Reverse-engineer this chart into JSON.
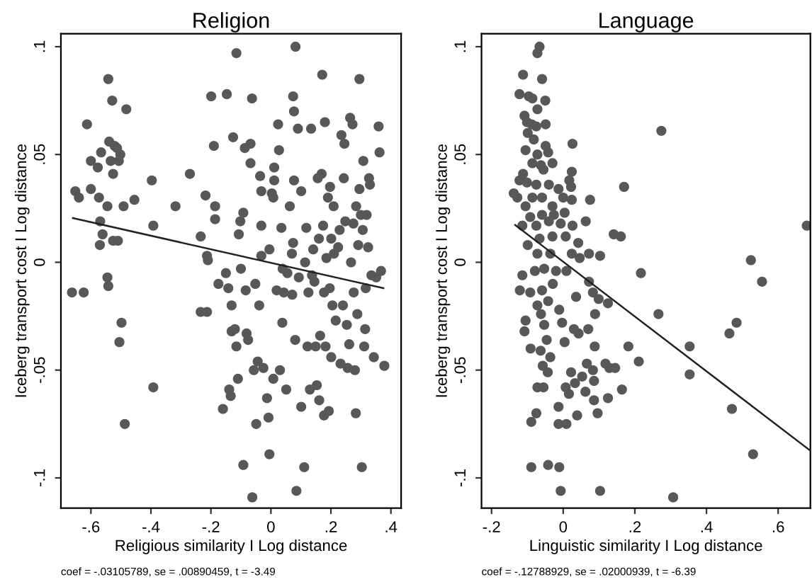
{
  "chart_data": [
    {
      "type": "scatter",
      "title": "Religion",
      "xlabel": "Religious similarity I Log distance",
      "ylabel": "Iceberg transport cost I Log distance",
      "annotations": [
        "coef = -.03105789, se = .00890459, t = -3.49"
      ],
      "xlim": [
        -0.7,
        0.434
      ],
      "ylim": [
        -0.114,
        0.106
      ],
      "xticks": [
        {
          "value": -0.6,
          "label": "-.6"
        },
        {
          "value": -0.4,
          "label": "-.4"
        },
        {
          "value": -0.2,
          "label": "-.2"
        },
        0,
        {
          "value": 0.2,
          "label": ".2"
        },
        {
          "value": 0.4,
          "label": ".4"
        }
      ],
      "yticks": [
        {
          "value": -0.1,
          "label": "-.1"
        },
        {
          "value": -0.05,
          "label": "-.05"
        },
        0,
        {
          "value": 0.05,
          "label": ".05"
        },
        {
          "value": 0.1,
          "label": ".1"
        }
      ],
      "grid": false,
      "marker": "circle",
      "series": [
        {
          "color": "#585858",
          "x": [
            -0.663,
            -0.624,
            -0.613,
            -0.652,
            -0.64,
            -0.6,
            -0.6,
            -0.577,
            -0.573,
            -0.569,
            -0.566,
            -0.57,
            -0.561,
            -0.542,
            -0.539,
            -0.534,
            -0.529,
            -0.526,
            -0.521,
            -0.545,
            -0.526,
            -0.51,
            -0.545,
            -0.542,
            -0.513,
            -0.507,
            -0.502,
            -0.498,
            -0.505,
            -0.487,
            -0.482,
            -0.491,
            -0.455,
            -0.397,
            -0.392,
            -0.392,
            -0.318,
            -0.27,
            -0.234,
            -0.234,
            -0.213,
            -0.218,
            -0.213,
            -0.21,
            -0.199,
            -0.19,
            -0.186,
            -0.186,
            -0.175,
            -0.16,
            -0.15,
            -0.147,
            -0.142,
            -0.139,
            -0.134,
            -0.131,
            -0.131,
            -0.126,
            -0.12,
            -0.115,
            -0.115,
            -0.11,
            -0.107,
            -0.102,
            -0.1,
            -0.092,
            -0.092,
            -0.087,
            -0.084,
            -0.081,
            -0.076,
            -0.068,
            -0.068,
            -0.063,
            -0.062,
            -0.057,
            -0.052,
            -0.049,
            -0.044,
            -0.039,
            -0.036,
            -0.032,
            -0.032,
            -0.032,
            -0.025,
            -0.013,
            -0.008,
            -0.005,
            -0.005,
            0.003,
            0.008,
            0.011,
            0.011,
            0.008,
            0.019,
            0.024,
            0.027,
            0.03,
            0.035,
            0.038,
            0.039,
            0.043,
            0.051,
            0.055,
            0.063,
            0.07,
            0.071,
            0.074,
            0.074,
            0.077,
            0.077,
            0.081,
            0.082,
            0.085,
            0.09,
            0.093,
            0.101,
            0.101,
            0.111,
            0.114,
            0.118,
            0.122,
            0.125,
            0.13,
            0.134,
            0.137,
            0.141,
            0.145,
            0.149,
            0.153,
            0.156,
            0.16,
            0.161,
            0.164,
            0.169,
            0.171,
            0.174,
            0.177,
            0.177,
            0.18,
            0.182,
            0.185,
            0.19,
            0.193,
            0.196,
            0.197,
            0.201,
            0.201,
            0.205,
            0.209,
            0.21,
            0.216,
            0.224,
            0.229,
            0.232,
            0.235,
            0.24,
            0.243,
            0.245,
            0.248,
            0.253,
            0.256,
            0.261,
            0.264,
            0.267,
            0.272,
            0.275,
            0.276,
            0.28,
            0.283,
            0.284,
            0.288,
            0.291,
            0.295,
            0.295,
            0.3,
            0.303,
            0.306,
            0.308,
            0.311,
            0.314,
            0.316,
            0.319,
            0.324,
            0.327,
            0.33,
            0.335,
            0.343,
            0.351,
            0.359,
            0.362,
            0.367,
            0.378
          ],
          "values": [
            -0.014,
            -0.014,
            0.064,
            0.033,
            0.03,
            0.047,
            0.034,
            0.044,
            0.03,
            0.019,
            0.051,
            0.008,
            0.013,
            0.085,
            0.056,
            0.047,
            0.075,
            0.041,
            0.054,
            0.026,
            0.01,
            0.01,
            -0.007,
            -0.011,
            0.053,
            0.047,
            0.05,
            -0.028,
            -0.037,
            -0.075,
            0.071,
            0.026,
            0.029,
            0.038,
            0.017,
            -0.058,
            0.026,
            0.041,
            0.012,
            -0.023,
            -0.023,
            0.031,
            0.003,
            0.001,
            0.077,
            0.054,
            0.026,
            0.02,
            -0.01,
            -0.068,
            -0.005,
            0.078,
            -0.012,
            -0.059,
            -0.062,
            -0.02,
            -0.032,
            0.058,
            -0.031,
            -0.039,
            0.097,
            -0.054,
            0.013,
            0.019,
            -0.003,
            0.023,
            -0.094,
            0.053,
            -0.013,
            -0.033,
            -0.036,
            0.055,
            0.046,
            0.076,
            -0.109,
            -0.05,
            -0.01,
            -0.075,
            -0.046,
            -0.02,
            0.04,
            0.017,
            0.033,
            0.003,
            -0.049,
            -0.063,
            -0.072,
            -0.089,
            0.006,
            0.032,
            0.03,
            0.038,
            0.044,
            -0.054,
            -0.013,
            0.064,
            0.052,
            -0.05,
            0.016,
            -0.028,
            -0.003,
            -0.014,
            -0.059,
            -0.005,
            0.026,
            0.004,
            -0.015,
            0.009,
            0.077,
            0.07,
            0.038,
            -0.036,
            0.1,
            -0.106,
            0.062,
            -0.007,
            0.033,
            -0.067,
            -0.095,
            0.0,
            0.016,
            -0.039,
            -0.014,
            -0.059,
            0.062,
            -0.006,
            0.006,
            -0.009,
            -0.039,
            -0.057,
            0.039,
            0.011,
            -0.064,
            -0.034,
            0.041,
            0.087,
            0.017,
            -0.071,
            -0.014,
            0.065,
            -0.039,
            0.002,
            0.03,
            -0.069,
            -0.012,
            0.035,
            0.011,
            -0.044,
            -0.02,
            0.026,
            0.004,
            -0.027,
            0.007,
            0.015,
            -0.047,
            0.059,
            -0.02,
            0.039,
            0.055,
            0.019,
            -0.029,
            -0.049,
            -0.038,
            0.067,
            0.0,
            0.064,
            0.018,
            -0.014,
            -0.05,
            -0.07,
            0.026,
            -0.024,
            0.008,
            0.034,
            0.085,
            0.022,
            -0.095,
            0.015,
            0.047,
            -0.039,
            -0.031,
            -0.012,
            0.022,
            0.007,
            0.039,
            0.036,
            -0.006,
            -0.044,
            -0.007,
            0.063,
            0.051,
            -0.004,
            -0.048
          ]
        },
        {
          "type": "line",
          "color": "#222222",
          "marker": "none",
          "line_style": "solid",
          "x": [
            -0.66,
            0.375
          ],
          "values": [
            0.0205,
            -0.012
          ]
        }
      ]
    },
    {
      "type": "scatter",
      "title": "Language",
      "xlabel": "Linguistic similarity I Log distance",
      "ylabel": "Iceberg transport cost I Log distance",
      "annotations": [
        "coef = -.12788929, se = .02000939, t = -6.39"
      ],
      "xlim": [
        -0.228,
        0.69
      ],
      "ylim": [
        -0.114,
        0.106
      ],
      "xticks": [
        {
          "value": -0.2,
          "label": "-.2"
        },
        0,
        {
          "value": 0.2,
          "label": ".2"
        },
        {
          "value": 0.4,
          "label": ".4"
        },
        {
          "value": 0.6,
          "label": ".6"
        }
      ],
      "yticks": [
        {
          "value": -0.1,
          "label": "-.1"
        },
        {
          "value": -0.05,
          "label": "-.05"
        },
        0,
        {
          "value": 0.05,
          "label": ".05"
        },
        {
          "value": 0.1,
          "label": ".1"
        }
      ],
      "grid": false,
      "marker": "circle",
      "series": [
        {
          "color": "#585858",
          "x": [
            -0.066,
            -0.072,
            -0.112,
            -0.059,
            -0.122,
            -0.096,
            -0.086,
            -0.05,
            -0.072,
            -0.108,
            -0.101,
            -0.088,
            -0.049,
            -0.075,
            -0.099,
            -0.082,
            -0.049,
            -0.105,
            -0.042,
            -0.072,
            -0.086,
            -0.03,
            -0.062,
            -0.112,
            -0.055,
            -0.122,
            -0.138,
            -0.101,
            -0.075,
            -0.04,
            -0.128,
            -0.086,
            -0.059,
            -0.105,
            -0.03,
            -0.013,
            0.0,
            0.022,
            0.024,
            0.017,
            -0.092,
            -0.059,
            -0.026,
            0.004,
            0.024,
            0.075,
            -0.114,
            -0.075,
            -0.04,
            -0.007,
            0.026,
            0.063,
            -0.099,
            -0.066,
            -0.03,
            0.007,
            0.042,
            0.141,
            0.161,
            0.17,
            0.026,
            0.274,
            -0.072,
            -0.036,
            0.024,
            0.046,
            0.072,
            0.103,
            -0.114,
            -0.079,
            -0.053,
            -0.02,
            0.009,
            0.217,
            0.524,
            0.555,
            0.68,
            -0.121,
            -0.092,
            -0.059,
            -0.029,
            0.036,
            0.072,
            0.083,
            0.099,
            0.125,
            -0.072,
            -0.042,
            -0.011,
            -0.105,
            -0.062,
            0.089,
            0.266,
            -0.108,
            -0.053,
            -0.003,
            0.03,
            0.07,
            0.484,
            0.464,
            -0.046,
            0.004,
            0.043,
            0.088,
            0.182,
            0.353,
            -0.091,
            -0.063,
            -0.036,
            -0.057,
            0.066,
            0.118,
            0.211,
            -0.043,
            0.022,
            0.053,
            0.083,
            0.129,
            0.145,
            0.353,
            0.007,
            0.033,
            0.086,
            0.164,
            -0.072,
            -0.055,
            0.016,
            0.062,
            0.086,
            0.125,
            -0.013,
            0.471,
            -0.075,
            0.039,
            0.096,
            -0.089,
            -0.013,
            0.009,
            -0.089,
            -0.042,
            -0.011,
            0.53,
            -0.007,
            0.103,
            0.307
          ],
          "values": [
            0.1,
            0.097,
            0.087,
            0.085,
            0.078,
            0.077,
            0.076,
            0.075,
            0.071,
            0.068,
            0.065,
            0.064,
            0.064,
            0.063,
            0.06,
            0.057,
            0.054,
            0.052,
            0.051,
            0.05,
            0.046,
            0.046,
            0.045,
            0.041,
            0.043,
            0.038,
            0.032,
            0.037,
            0.036,
            0.036,
            0.03,
            0.03,
            0.03,
            0.026,
            0.026,
            0.034,
            0.03,
            0.035,
            0.042,
            0.038,
            0.021,
            0.022,
            0.022,
            0.023,
            0.029,
            0.029,
            0.017,
            0.017,
            0.019,
            0.018,
            0.017,
            0.019,
            0.008,
            0.011,
            0.012,
            0.012,
            0.009,
            0.013,
            0.012,
            0.035,
            0.055,
            0.061,
            0.004,
            0.004,
            0.004,
            0.002,
            0.004,
            0.003,
            -0.006,
            -0.004,
            -0.003,
            -0.004,
            -0.004,
            -0.005,
            0.001,
            -0.009,
            0.017,
            -0.013,
            -0.014,
            -0.013,
            -0.01,
            -0.016,
            -0.009,
            -0.014,
            -0.017,
            -0.019,
            -0.02,
            -0.018,
            -0.022,
            -0.027,
            -0.024,
            -0.024,
            -0.024,
            -0.032,
            -0.029,
            -0.028,
            -0.031,
            -0.031,
            -0.028,
            -0.033,
            -0.036,
            -0.037,
            -0.033,
            -0.039,
            -0.039,
            -0.039,
            -0.04,
            -0.041,
            -0.044,
            -0.048,
            -0.047,
            -0.047,
            -0.046,
            -0.051,
            -0.051,
            -0.053,
            -0.05,
            -0.049,
            -0.049,
            -0.052,
            -0.058,
            -0.056,
            -0.055,
            -0.059,
            -0.058,
            -0.058,
            -0.061,
            -0.06,
            -0.064,
            -0.063,
            -0.067,
            -0.068,
            -0.07,
            -0.071,
            -0.07,
            -0.074,
            -0.075,
            -0.075,
            -0.095,
            -0.094,
            -0.095,
            -0.089,
            -0.106,
            -0.106,
            -0.109
          ]
        },
        {
          "type": "line",
          "color": "#222222",
          "marker": "none",
          "line_style": "solid",
          "x": [
            -0.134,
            0.69
          ],
          "values": [
            0.0173,
            -0.0874
          ]
        }
      ]
    }
  ]
}
